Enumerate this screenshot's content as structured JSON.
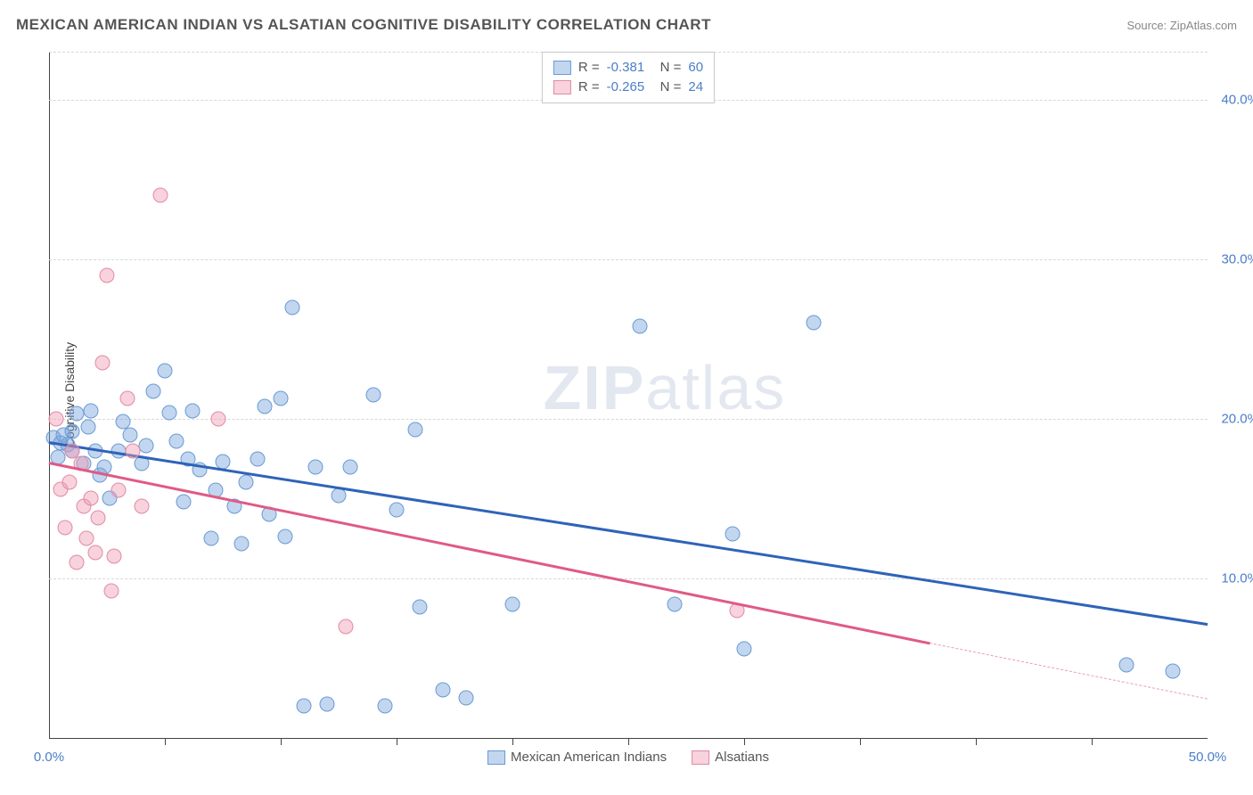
{
  "header": {
    "title": "MEXICAN AMERICAN INDIAN VS ALSATIAN COGNITIVE DISABILITY CORRELATION CHART",
    "source": "Source: ZipAtlas.com"
  },
  "watermark": {
    "bold": "ZIP",
    "light": "atlas"
  },
  "chart": {
    "type": "scatter",
    "y_axis_label": "Cognitive Disability",
    "background_color": "#ffffff",
    "grid_color": "#d8d8d8",
    "axis_color": "#444444",
    "xlim": [
      0,
      50
    ],
    "ylim": [
      0,
      43
    ],
    "x_tick_labels": [
      {
        "x": 0,
        "label": "0.0%"
      },
      {
        "x": 50,
        "label": "50.0%"
      }
    ],
    "x_ticks_minor": [
      5,
      10,
      15,
      20,
      25,
      30,
      35,
      40,
      45
    ],
    "y_tick_labels": [
      {
        "y": 10,
        "label": "10.0%"
      },
      {
        "y": 20,
        "label": "20.0%"
      },
      {
        "y": 30,
        "label": "30.0%"
      },
      {
        "y": 40,
        "label": "40.0%"
      }
    ],
    "series": [
      {
        "name": "Mexican American Indians",
        "fill": "rgba(120,165,220,0.45)",
        "stroke": "#6a9ad5",
        "trend_color": "#2f63b8",
        "R": "-0.381",
        "N": "60",
        "trend": {
          "x1": 0,
          "y1": 18.6,
          "x2": 50,
          "y2": 7.2
        },
        "points": [
          [
            0.2,
            18.8
          ],
          [
            0.4,
            17.6
          ],
          [
            0.5,
            18.5
          ],
          [
            0.6,
            19.0
          ],
          [
            0.8,
            18.4
          ],
          [
            1.0,
            19.2
          ],
          [
            1.0,
            18.0
          ],
          [
            1.2,
            20.3
          ],
          [
            1.5,
            17.2
          ],
          [
            1.7,
            19.5
          ],
          [
            1.8,
            20.5
          ],
          [
            2.0,
            18.0
          ],
          [
            2.2,
            16.5
          ],
          [
            2.4,
            17.0
          ],
          [
            2.6,
            15.0
          ],
          [
            3.0,
            18.0
          ],
          [
            3.2,
            19.8
          ],
          [
            3.5,
            19.0
          ],
          [
            4.0,
            17.2
          ],
          [
            4.2,
            18.3
          ],
          [
            4.5,
            21.7
          ],
          [
            5.0,
            23.0
          ],
          [
            5.2,
            20.4
          ],
          [
            5.5,
            18.6
          ],
          [
            5.8,
            14.8
          ],
          [
            6.0,
            17.5
          ],
          [
            6.2,
            20.5
          ],
          [
            6.5,
            16.8
          ],
          [
            7.0,
            12.5
          ],
          [
            7.2,
            15.5
          ],
          [
            7.5,
            17.3
          ],
          [
            8.0,
            14.5
          ],
          [
            8.3,
            12.2
          ],
          [
            8.5,
            16.0
          ],
          [
            9.0,
            17.5
          ],
          [
            9.3,
            20.8
          ],
          [
            9.5,
            14.0
          ],
          [
            10.0,
            21.3
          ],
          [
            10.2,
            12.6
          ],
          [
            10.5,
            27.0
          ],
          [
            11.0,
            2.0
          ],
          [
            11.5,
            17.0
          ],
          [
            12.0,
            2.1
          ],
          [
            12.5,
            15.2
          ],
          [
            13.0,
            17.0
          ],
          [
            14.0,
            21.5
          ],
          [
            14.5,
            2.0
          ],
          [
            15.0,
            14.3
          ],
          [
            15.8,
            19.3
          ],
          [
            16.0,
            8.2
          ],
          [
            17.0,
            3.0
          ],
          [
            18.0,
            2.5
          ],
          [
            20.0,
            8.4
          ],
          [
            25.5,
            25.8
          ],
          [
            27.0,
            8.4
          ],
          [
            29.5,
            12.8
          ],
          [
            30.0,
            5.6
          ],
          [
            33.0,
            26.0
          ],
          [
            46.5,
            4.6
          ],
          [
            48.5,
            4.2
          ]
        ]
      },
      {
        "name": "Alsatians",
        "fill": "rgba(240,155,180,0.45)",
        "stroke": "#e08ba5",
        "trend_color": "#e05a85",
        "R": "-0.265",
        "N": "24",
        "trend": {
          "x1": 0,
          "y1": 17.3,
          "x2": 38,
          "y2": 6.0,
          "dash_to_x": 50,
          "dash_to_y": 2.5
        },
        "points": [
          [
            0.3,
            20.0
          ],
          [
            0.5,
            15.6
          ],
          [
            0.7,
            13.2
          ],
          [
            0.9,
            16.0
          ],
          [
            1.0,
            18.0
          ],
          [
            1.2,
            11.0
          ],
          [
            1.4,
            17.2
          ],
          [
            1.5,
            14.5
          ],
          [
            1.6,
            12.5
          ],
          [
            1.8,
            15.0
          ],
          [
            2.0,
            11.6
          ],
          [
            2.1,
            13.8
          ],
          [
            2.3,
            23.5
          ],
          [
            2.5,
            29.0
          ],
          [
            2.7,
            9.2
          ],
          [
            2.8,
            11.4
          ],
          [
            3.0,
            15.5
          ],
          [
            3.4,
            21.3
          ],
          [
            3.6,
            18.0
          ],
          [
            4.0,
            14.5
          ],
          [
            4.8,
            34.0
          ],
          [
            7.3,
            20.0
          ],
          [
            12.8,
            7.0
          ],
          [
            29.7,
            8.0
          ]
        ]
      }
    ],
    "legend_top": {
      "R_label": "R =",
      "N_label": "N =",
      "text_color": "#555555",
      "value_color": "#4a7ec7"
    },
    "legend_bottom_items": [
      {
        "series": 0,
        "label": "Mexican American Indians"
      },
      {
        "series": 1,
        "label": "Alsatians"
      }
    ]
  }
}
